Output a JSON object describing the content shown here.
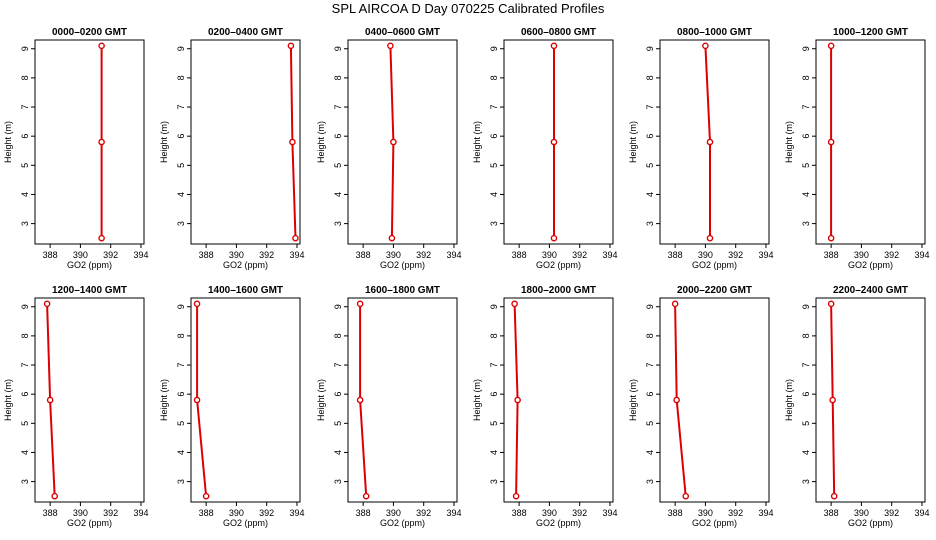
{
  "title": "SPL AIRCOA D  Day 070225  Calibrated Profiles",
  "colors": {
    "series": "#dd0000",
    "axis": "#000000"
  },
  "chart_data": [
    {
      "type": "line",
      "title": "0000–0200 GMT",
      "xlabel": "GO2 (ppm)",
      "ylabel": "Height (m)",
      "xlim": [
        387,
        394.2
      ],
      "ylim": [
        2.3,
        9.3
      ],
      "xticks": [
        388,
        390,
        392,
        394
      ],
      "yticks": [
        3,
        4,
        5,
        6,
        7,
        8,
        9
      ],
      "grid": false,
      "series": [
        {
          "x": [
            391.4,
            391.4,
            391.4
          ],
          "y": [
            2.5,
            5.8,
            9.1
          ]
        }
      ]
    },
    {
      "type": "line",
      "title": "0200–0400 GMT",
      "xlabel": "GO2 (ppm)",
      "ylabel": "Height (m)",
      "xlim": [
        387,
        394.2
      ],
      "ylim": [
        2.3,
        9.3
      ],
      "xticks": [
        388,
        390,
        392,
        394
      ],
      "yticks": [
        3,
        4,
        5,
        6,
        7,
        8,
        9
      ],
      "grid": false,
      "series": [
        {
          "x": [
            393.9,
            393.7,
            393.6
          ],
          "y": [
            2.5,
            5.8,
            9.1
          ]
        }
      ]
    },
    {
      "type": "line",
      "title": "0400–0600 GMT",
      "xlabel": "GO2 (ppm)",
      "ylabel": "Height (m)",
      "xlim": [
        387,
        394.2
      ],
      "ylim": [
        2.3,
        9.3
      ],
      "xticks": [
        388,
        390,
        392,
        394
      ],
      "yticks": [
        3,
        4,
        5,
        6,
        7,
        8,
        9
      ],
      "grid": false,
      "series": [
        {
          "x": [
            389.9,
            390.0,
            389.8
          ],
          "y": [
            2.5,
            5.8,
            9.1
          ]
        }
      ]
    },
    {
      "type": "line",
      "title": "0600–0800 GMT",
      "xlabel": "GO2 (ppm)",
      "ylabel": "Height (m)",
      "xlim": [
        387,
        394.2
      ],
      "ylim": [
        2.3,
        9.3
      ],
      "xticks": [
        388,
        390,
        392,
        394
      ],
      "yticks": [
        3,
        4,
        5,
        6,
        7,
        8,
        9
      ],
      "grid": false,
      "series": [
        {
          "x": [
            390.3,
            390.3,
            390.3
          ],
          "y": [
            2.5,
            5.8,
            9.1
          ]
        }
      ]
    },
    {
      "type": "line",
      "title": "0800–1000 GMT",
      "xlabel": "GO2 (ppm)",
      "ylabel": "Height (m)",
      "xlim": [
        387,
        394.2
      ],
      "ylim": [
        2.3,
        9.3
      ],
      "xticks": [
        388,
        390,
        392,
        394
      ],
      "yticks": [
        3,
        4,
        5,
        6,
        7,
        8,
        9
      ],
      "grid": false,
      "series": [
        {
          "x": [
            390.3,
            390.3,
            390.0
          ],
          "y": [
            2.5,
            5.8,
            9.1
          ]
        }
      ]
    },
    {
      "type": "line",
      "title": "1000–1200 GMT",
      "xlabel": "GO2 (ppm)",
      "ylabel": "Height (m)",
      "xlim": [
        387,
        394.2
      ],
      "ylim": [
        2.3,
        9.3
      ],
      "xticks": [
        388,
        390,
        392,
        394
      ],
      "yticks": [
        3,
        4,
        5,
        6,
        7,
        8,
        9
      ],
      "grid": false,
      "series": [
        {
          "x": [
            388.0,
            388.0,
            388.0
          ],
          "y": [
            2.5,
            5.8,
            9.1
          ]
        }
      ]
    },
    {
      "type": "line",
      "title": "1200–1400 GMT",
      "xlabel": "GO2 (ppm)",
      "ylabel": "Height (m)",
      "xlim": [
        387,
        394.2
      ],
      "ylim": [
        2.3,
        9.3
      ],
      "xticks": [
        388,
        390,
        392,
        394
      ],
      "yticks": [
        3,
        4,
        5,
        6,
        7,
        8,
        9
      ],
      "grid": false,
      "series": [
        {
          "x": [
            388.3,
            388.0,
            387.8
          ],
          "y": [
            2.5,
            5.8,
            9.1
          ]
        }
      ]
    },
    {
      "type": "line",
      "title": "1400–1600 GMT",
      "xlabel": "GO2 (ppm)",
      "ylabel": "Height (m)",
      "xlim": [
        387,
        394.2
      ],
      "ylim": [
        2.3,
        9.3
      ],
      "xticks": [
        388,
        390,
        392,
        394
      ],
      "yticks": [
        3,
        4,
        5,
        6,
        7,
        8,
        9
      ],
      "grid": false,
      "series": [
        {
          "x": [
            388.0,
            387.4,
            387.4
          ],
          "y": [
            2.5,
            5.8,
            9.1
          ]
        }
      ]
    },
    {
      "type": "line",
      "title": "1600–1800 GMT",
      "xlabel": "GO2 (ppm)",
      "ylabel": "Height (m)",
      "xlim": [
        387,
        394.2
      ],
      "ylim": [
        2.3,
        9.3
      ],
      "xticks": [
        388,
        390,
        392,
        394
      ],
      "yticks": [
        3,
        4,
        5,
        6,
        7,
        8,
        9
      ],
      "grid": false,
      "series": [
        {
          "x": [
            388.2,
            387.8,
            387.8
          ],
          "y": [
            2.5,
            5.8,
            9.1
          ]
        }
      ]
    },
    {
      "type": "line",
      "title": "1800–2000 GMT",
      "xlabel": "GO2 (ppm)",
      "ylabel": "Height (m)",
      "xlim": [
        387,
        394.2
      ],
      "ylim": [
        2.3,
        9.3
      ],
      "xticks": [
        388,
        390,
        392,
        394
      ],
      "yticks": [
        3,
        4,
        5,
        6,
        7,
        8,
        9
      ],
      "grid": false,
      "series": [
        {
          "x": [
            387.8,
            387.9,
            387.7
          ],
          "y": [
            2.5,
            5.8,
            9.1
          ]
        }
      ]
    },
    {
      "type": "line",
      "title": "2000–2200 GMT",
      "xlabel": "GO2 (ppm)",
      "ylabel": "Height (m)",
      "xlim": [
        387,
        394.2
      ],
      "ylim": [
        2.3,
        9.3
      ],
      "xticks": [
        388,
        390,
        392,
        394
      ],
      "yticks": [
        3,
        4,
        5,
        6,
        7,
        8,
        9
      ],
      "grid": false,
      "series": [
        {
          "x": [
            388.7,
            388.1,
            388.0
          ],
          "y": [
            2.5,
            5.8,
            9.1
          ]
        }
      ]
    },
    {
      "type": "line",
      "title": "2200–2400 GMT",
      "xlabel": "GO2 (ppm)",
      "ylabel": "Height (m)",
      "xlim": [
        387,
        394.2
      ],
      "ylim": [
        2.3,
        9.3
      ],
      "xticks": [
        388,
        390,
        392,
        394
      ],
      "yticks": [
        3,
        4,
        5,
        6,
        7,
        8,
        9
      ],
      "grid": false,
      "series": [
        {
          "x": [
            388.2,
            388.1,
            388.0
          ],
          "y": [
            2.5,
            5.8,
            9.1
          ]
        }
      ]
    }
  ]
}
